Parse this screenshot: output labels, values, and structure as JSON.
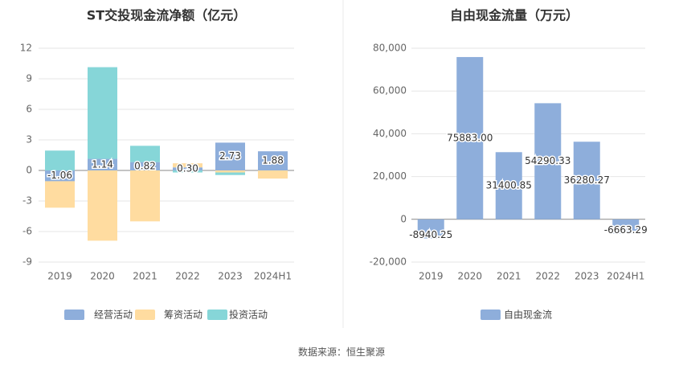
{
  "source": "数据来源：恒生聚源",
  "chart_data": [
    {
      "type": "bar",
      "stacked": true,
      "title": "ST交投现金流净额（亿元）",
      "categories": [
        "2019",
        "2020",
        "2021",
        "2022",
        "2023",
        "2024H1"
      ],
      "ylim": [
        -9,
        12
      ],
      "yticks": [
        -9,
        -6,
        -3,
        0,
        3,
        6,
        9,
        12
      ],
      "grid": true,
      "legend_position": "bottom",
      "series": [
        {
          "name": "经营活动",
          "values": [
            -1.06,
            1.14,
            0.82,
            0.3,
            2.73,
            1.88
          ],
          "color": "#8eaedb",
          "labels": [
            "-1.06",
            "1.14",
            "0.82",
            "0.30",
            "2.73",
            "1.88"
          ]
        },
        {
          "name": "筹资活动",
          "values": [
            -2.6,
            -6.9,
            -5.0,
            0.4,
            -0.2,
            -0.8
          ],
          "color": "#ffdca0"
        },
        {
          "name": "投资活动",
          "values": [
            1.95,
            9.0,
            1.6,
            -0.2,
            -0.25,
            0.0
          ],
          "color": "#86d6d8"
        }
      ]
    },
    {
      "type": "bar",
      "title": "自由现金流量（万元）",
      "categories": [
        "2019",
        "2020",
        "2021",
        "2022",
        "2023",
        "2024H1"
      ],
      "ylim": [
        -20000,
        80000
      ],
      "yticks": [
        -20000,
        0,
        20000,
        40000,
        60000,
        80000
      ],
      "ytick_labels": [
        "-20,000",
        "0",
        "20,000",
        "40,000",
        "60,000",
        "80,000"
      ],
      "grid": true,
      "legend_position": "bottom",
      "series": [
        {
          "name": "自由现金流",
          "values": [
            -8940.25,
            75883.0,
            31400.85,
            54290.33,
            36280.27,
            -6663.29
          ],
          "color": "#8eaedb",
          "labels": [
            "-8940.25",
            "75883.00",
            "31400.85",
            "54290.33",
            "36280.27",
            "-6663.29"
          ]
        }
      ]
    }
  ]
}
